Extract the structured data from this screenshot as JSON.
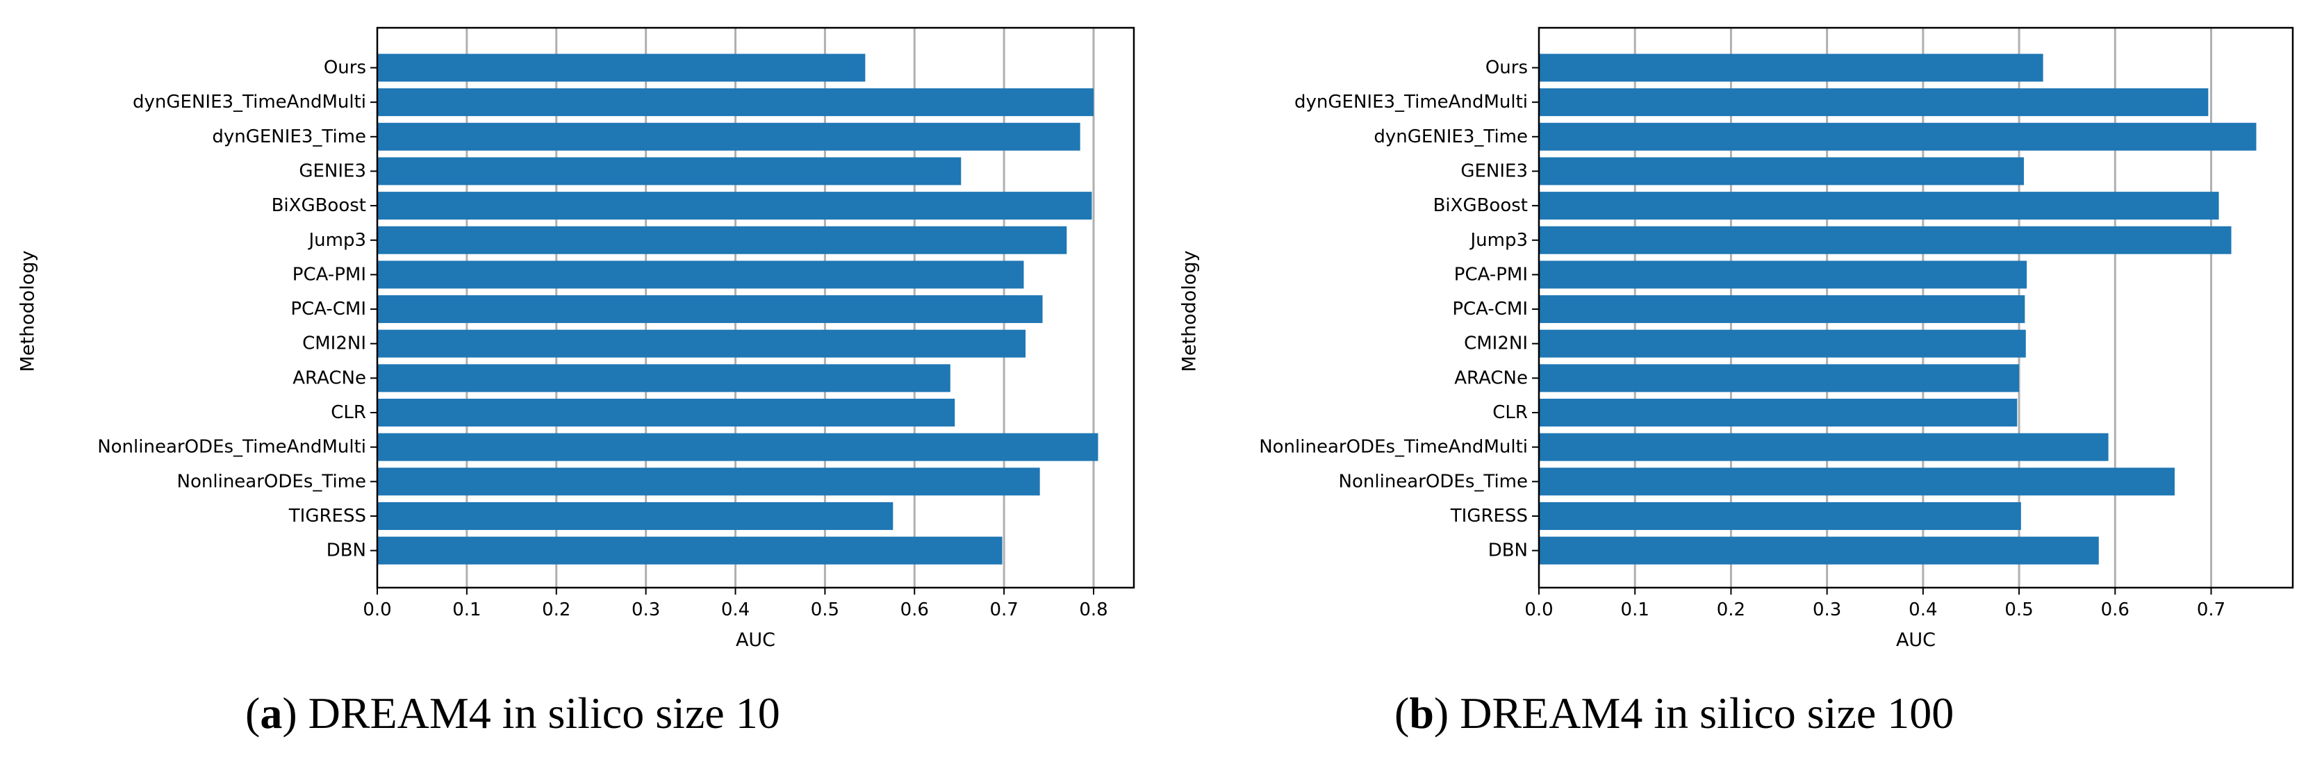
{
  "colors": {
    "bar": "#1f77b4",
    "grid": "#b0b0b0",
    "axis": "#000000",
    "background": "#ffffff"
  },
  "captions": [
    {
      "letter": "a",
      "paren_open": "(",
      "paren_close": ")",
      "text": " DREAM4 in silico size 10"
    },
    {
      "letter": "b",
      "paren_open": "(",
      "paren_close": ")",
      "text": " DREAM4 in silico size 100"
    }
  ],
  "chart_data": [
    {
      "type": "bar",
      "orientation": "horizontal",
      "title": "",
      "xlabel": "AUC",
      "ylabel": "Methodology",
      "xlim": [
        0,
        0.845
      ],
      "xticks": [
        0.0,
        0.1,
        0.2,
        0.3,
        0.4,
        0.5,
        0.6,
        0.7,
        0.8
      ],
      "xtick_labels": [
        "0.0",
        "0.1",
        "0.2",
        "0.3",
        "0.4",
        "0.5",
        "0.6",
        "0.7",
        "0.8"
      ],
      "grid": "x",
      "categories": [
        "Ours",
        "dynGENIE3_TimeAndMulti",
        "dynGENIE3_Time",
        "GENIE3",
        "BiXGBoost",
        "Jump3",
        "PCA-PMI",
        "PCA-CMI",
        "CMI2NI",
        "ARACNe",
        "CLR",
        "NonlinearODEs_TimeAndMulti",
        "NonlinearODEs_Time",
        "TIGRESS",
        "DBN"
      ],
      "values": [
        0.545,
        0.8,
        0.785,
        0.652,
        0.798,
        0.77,
        0.722,
        0.743,
        0.724,
        0.64,
        0.645,
        0.805,
        0.74,
        0.576,
        0.698
      ]
    },
    {
      "type": "bar",
      "orientation": "horizontal",
      "title": "",
      "xlabel": "AUC",
      "ylabel": "Methodology",
      "xlim": [
        0,
        0.785
      ],
      "xticks": [
        0.0,
        0.1,
        0.2,
        0.3,
        0.4,
        0.5,
        0.6,
        0.7
      ],
      "xtick_labels": [
        "0.0",
        "0.1",
        "0.2",
        "0.3",
        "0.4",
        "0.5",
        "0.6",
        "0.7"
      ],
      "grid": "x",
      "categories": [
        "Ours",
        "dynGENIE3_TimeAndMulti",
        "dynGENIE3_Time",
        "GENIE3",
        "BiXGBoost",
        "Jump3",
        "PCA-PMI",
        "PCA-CMI",
        "CMI2NI",
        "ARACNe",
        "CLR",
        "NonlinearODEs_TimeAndMulti",
        "NonlinearODEs_Time",
        "TIGRESS",
        "DBN"
      ],
      "values": [
        0.525,
        0.697,
        0.747,
        0.505,
        0.708,
        0.721,
        0.508,
        0.506,
        0.507,
        0.5,
        0.498,
        0.593,
        0.662,
        0.502,
        0.583
      ]
    }
  ]
}
